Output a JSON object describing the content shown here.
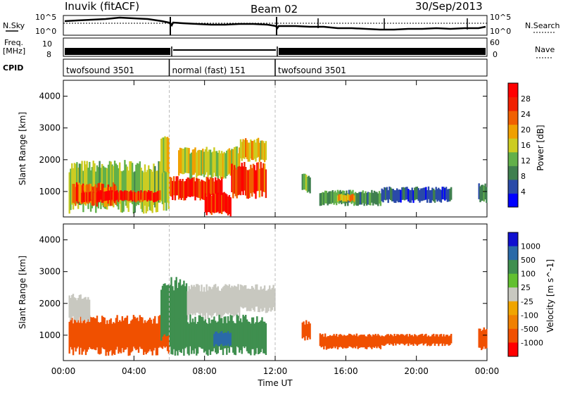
{
  "header": {
    "station": "Inuvik (fitACF)",
    "beam": "Beam 02",
    "date": "30/Sep/2013"
  },
  "top_panels": {
    "nsky_label": "N.Sky",
    "nsky_ticks": [
      "10^5",
      "10^0"
    ],
    "nsearch_label": "N.Search",
    "nsearch_ticks": [
      "10^5",
      "10^0"
    ],
    "freq_label_1": "Freq.",
    "freq_label_2": "[MHz]",
    "freq_ticks": [
      "10",
      "8"
    ],
    "nave_label": "Nave",
    "nave_ticks": [
      "60",
      "0"
    ],
    "cpid_label": "CPID",
    "cpid_segments": [
      {
        "label": "twofsound 3501",
        "start_hour": 0,
        "end_hour": 6
      },
      {
        "label": "normal (fast) 151",
        "start_hour": 6,
        "end_hour": 12
      },
      {
        "label": "twofsound 3501",
        "start_hour": 12,
        "end_hour": 24
      }
    ]
  },
  "colors": {
    "power_scale": [
      "#0000ff",
      "#2a4aa8",
      "#3f7f4f",
      "#62b04a",
      "#cccc22",
      "#f0a000",
      "#f06000",
      "#f02000",
      "#ff0000"
    ],
    "velocity_scale": [
      "#ff0000",
      "#f05000",
      "#f08000",
      "#f0a500",
      "#c8c8c0",
      "#c8c8c0",
      "#62c030",
      "#3f8f4f",
      "#2a6aa8",
      "#1010d0"
    ]
  },
  "chart_data": [
    {
      "type": "heatmap",
      "name": "power",
      "ylabel": "Slant Range [km]",
      "yticks": [
        "4000",
        "3000",
        "2000",
        "1000"
      ],
      "ylim": [
        200,
        4500
      ],
      "xlim_hours": [
        0,
        24
      ],
      "colorbar_label": "Power [dB]",
      "colorbar_ticks": [
        "28",
        "24",
        "20",
        "16",
        "12",
        "8",
        "4"
      ],
      "colorbar_range": [
        0,
        32
      ],
      "bands": [
        {
          "x0": 0.3,
          "x1": 6.0,
          "y0": 500,
          "y1": 1800,
          "value": 14
        },
        {
          "x0": 0.5,
          "x1": 3.0,
          "y0": 600,
          "y1": 1200,
          "value": 24
        },
        {
          "x0": 1.0,
          "x1": 5.5,
          "y0": 700,
          "y1": 1000,
          "value": 28
        },
        {
          "x0": 5.5,
          "x1": 6.0,
          "y0": 1500,
          "y1": 2600,
          "value": 16
        },
        {
          "x0": 6.0,
          "x1": 9.0,
          "y0": 800,
          "y1": 1400,
          "value": 28
        },
        {
          "x0": 6.5,
          "x1": 10.0,
          "y0": 1500,
          "y1": 2300,
          "value": 16
        },
        {
          "x0": 8.0,
          "x1": 9.5,
          "y0": 300,
          "y1": 900,
          "value": 30
        },
        {
          "x0": 9.5,
          "x1": 11.5,
          "y0": 900,
          "y1": 1800,
          "value": 26
        },
        {
          "x0": 10.0,
          "x1": 11.5,
          "y0": 2000,
          "y1": 2600,
          "value": 18
        },
        {
          "x0": 13.5,
          "x1": 14.0,
          "y0": 1000,
          "y1": 1500,
          "value": 12
        },
        {
          "x0": 14.5,
          "x1": 18.0,
          "y0": 600,
          "y1": 1000,
          "value": 10
        },
        {
          "x0": 15.5,
          "x1": 16.5,
          "y0": 700,
          "y1": 900,
          "value": 20
        },
        {
          "x0": 18.0,
          "x1": 22.0,
          "y0": 700,
          "y1": 1100,
          "value": 6
        },
        {
          "x0": 23.5,
          "x1": 24.0,
          "y0": 700,
          "y1": 1200,
          "value": 10
        }
      ]
    },
    {
      "type": "heatmap",
      "name": "velocity",
      "ylabel": "Slant Range [km]",
      "yticks": [
        "4000",
        "3000",
        "2000",
        "1000"
      ],
      "ylim": [
        200,
        4500
      ],
      "xlabel": "Time UT",
      "xticks": [
        "00:00",
        "04:00",
        "08:00",
        "12:00",
        "16:00",
        "20:00",
        "00:00"
      ],
      "xlim_hours": [
        0,
        24
      ],
      "colorbar_label": "Velocity [m s^-1]",
      "colorbar_ticks": [
        "1000",
        "500",
        "100",
        "25",
        "-25",
        "-100",
        "-500",
        "-1000"
      ],
      "bands": [
        {
          "x0": 0.3,
          "x1": 6.0,
          "y0": 500,
          "y1": 1500,
          "value": -150
        },
        {
          "x0": 0.3,
          "x1": 1.5,
          "y0": 1500,
          "y1": 2200,
          "value": 0
        },
        {
          "x0": 5.5,
          "x1": 7.0,
          "y0": 1000,
          "y1": 2600,
          "value": 150
        },
        {
          "x0": 7.0,
          "x1": 10.0,
          "y0": 1600,
          "y1": 2500,
          "value": 0
        },
        {
          "x0": 6.0,
          "x1": 11.5,
          "y0": 500,
          "y1": 1500,
          "value": 200
        },
        {
          "x0": 8.5,
          "x1": 9.5,
          "y0": 700,
          "y1": 1100,
          "value": 600
        },
        {
          "x0": 9.5,
          "x1": 12.0,
          "y0": 1800,
          "y1": 2500,
          "value": 0
        },
        {
          "x0": 13.5,
          "x1": 14.0,
          "y0": 900,
          "y1": 1400,
          "value": -150
        },
        {
          "x0": 14.5,
          "x1": 18.0,
          "y0": 600,
          "y1": 1000,
          "value": -150
        },
        {
          "x0": 18.0,
          "x1": 22.0,
          "y0": 700,
          "y1": 1000,
          "value": -120
        },
        {
          "x0": 23.5,
          "x1": 24.0,
          "y0": 600,
          "y1": 1200,
          "value": -250
        }
      ]
    }
  ]
}
